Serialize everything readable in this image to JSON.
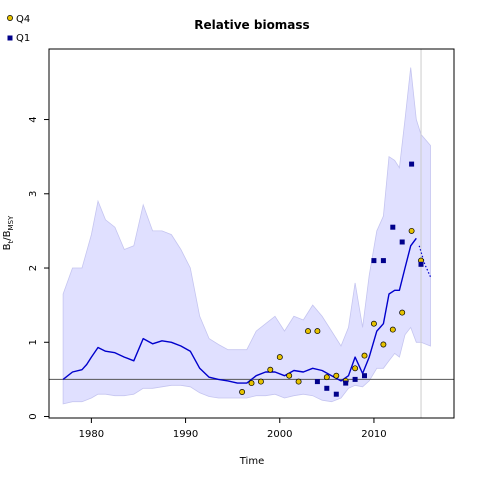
{
  "chart_data": {
    "type": "line",
    "title": "Relative biomass",
    "xlabel": "Time",
    "ylabel": {
      "main": "B",
      "sub1": "t",
      "sep": "/B",
      "sub2": "MSY"
    },
    "xlim": [
      1975.5,
      2018.5
    ],
    "ylim": [
      -0.02,
      4.95
    ],
    "x_ticks": [
      "1980",
      "1990",
      "2000",
      "2010"
    ],
    "y_ticks": [
      "0",
      "1",
      "2",
      "3",
      "4"
    ],
    "reference_line": {
      "y": 0.5,
      "color": "#555555"
    },
    "vertical_line": {
      "x": 2015,
      "color": "#cccccc"
    },
    "colors": {
      "band_fill": "#e0e0ff",
      "band_stroke": "#c5c5f0",
      "median": "#0000cc",
      "q4_fill": "#e6c200",
      "q1_fill": "#00008b"
    },
    "band": {
      "x": [
        1977,
        1978,
        1979,
        1980,
        1980.7,
        1981.5,
        1982.5,
        1983.5,
        1984.5,
        1985.5,
        1986.5,
        1987.5,
        1988.5,
        1989.5,
        1990.5,
        1991.5,
        1992.5,
        1993.5,
        1994.5,
        1995.5,
        1996.5,
        1997.5,
        1998.5,
        1999.5,
        2000.5,
        2001.5,
        2002.5,
        2003.5,
        2004.5,
        2005.5,
        2006.5,
        2007.3,
        2008,
        2008.8,
        2009.5,
        2010.3,
        2011,
        2011.6,
        2012.2,
        2012.7,
        2013.3,
        2013.9,
        2014.5,
        2015,
        2016
      ],
      "upper": [
        1.65,
        2.0,
        2.0,
        2.45,
        2.9,
        2.65,
        2.55,
        2.25,
        2.3,
        2.85,
        2.5,
        2.5,
        2.45,
        2.25,
        2.0,
        1.35,
        1.05,
        0.97,
        0.9,
        0.9,
        0.9,
        1.15,
        1.25,
        1.35,
        1.15,
        1.35,
        1.3,
        1.5,
        1.35,
        1.15,
        0.95,
        1.2,
        1.8,
        1.2,
        1.9,
        2.5,
        2.7,
        3.5,
        3.45,
        3.35,
        4.0,
        4.7,
        4.0,
        3.8,
        3.65
      ],
      "lower": [
        0.17,
        0.2,
        0.2,
        0.25,
        0.3,
        0.3,
        0.28,
        0.28,
        0.3,
        0.38,
        0.38,
        0.4,
        0.42,
        0.42,
        0.4,
        0.32,
        0.27,
        0.25,
        0.25,
        0.25,
        0.25,
        0.28,
        0.28,
        0.3,
        0.25,
        0.28,
        0.3,
        0.28,
        0.22,
        0.2,
        0.25,
        0.38,
        0.42,
        0.4,
        0.48,
        0.65,
        0.65,
        0.75,
        0.85,
        0.8,
        1.1,
        1.2,
        1.0,
        1.0,
        0.95
      ]
    },
    "median": {
      "x": [
        1977,
        1978,
        1979,
        1979.5,
        1980,
        1980.7,
        1981.5,
        1982.5,
        1983.5,
        1984.5,
        1985.5,
        1986.5,
        1987.5,
        1988.5,
        1989.5,
        1990.5,
        1991.5,
        1992.5,
        1993.5,
        1994.5,
        1995.5,
        1996.5,
        1997.5,
        1998.5,
        1999.5,
        2000.5,
        2001.5,
        2002.5,
        2003.5,
        2004.5,
        2005.5,
        2006.5,
        2007.3,
        2008,
        2008.8,
        2009.5,
        2010.3,
        2011,
        2011.6,
        2012.2,
        2012.7,
        2013.3,
        2013.9,
        2014.5
      ],
      "y": [
        0.5,
        0.6,
        0.63,
        0.7,
        0.8,
        0.93,
        0.88,
        0.86,
        0.8,
        0.75,
        1.05,
        0.98,
        1.02,
        1.0,
        0.95,
        0.88,
        0.65,
        0.53,
        0.5,
        0.48,
        0.45,
        0.45,
        0.55,
        0.6,
        0.6,
        0.55,
        0.62,
        0.6,
        0.65,
        0.62,
        0.55,
        0.48,
        0.55,
        0.8,
        0.58,
        0.8,
        1.15,
        1.25,
        1.65,
        1.7,
        1.7,
        2.0,
        2.3,
        2.4
      ]
    },
    "projection": {
      "x": [
        2014.8,
        2015.4,
        2016
      ],
      "y": [
        2.3,
        2.05,
        1.88
      ]
    },
    "legend": {
      "placement": "top-left",
      "entries": [
        {
          "label": "Q4",
          "marker": "circle"
        },
        {
          "label": "Q1",
          "marker": "square"
        }
      ]
    },
    "series": [
      {
        "name": "Q4",
        "marker": "circle",
        "x": [
          1996,
          1997,
          1998,
          1999,
          2000,
          2001,
          2002,
          2003,
          2004,
          2005,
          2006,
          2007,
          2008,
          2009,
          2010,
          2011,
          2012,
          2013,
          2014,
          2015
        ],
        "y": [
          0.33,
          0.45,
          0.47,
          0.63,
          0.8,
          0.55,
          0.47,
          1.15,
          1.15,
          0.53,
          0.55,
          0.48,
          0.65,
          0.82,
          1.25,
          0.97,
          1.17,
          1.4,
          2.5,
          2.1
        ]
      },
      {
        "name": "Q1",
        "marker": "square",
        "x": [
          2004,
          2005,
          2006,
          2007,
          2008,
          2009,
          2010,
          2011,
          2012,
          2013,
          2014,
          2015
        ],
        "y": [
          0.47,
          0.38,
          0.3,
          0.45,
          0.5,
          0.55,
          2.1,
          2.1,
          2.55,
          2.35,
          3.4,
          2.05
        ]
      }
    ]
  }
}
